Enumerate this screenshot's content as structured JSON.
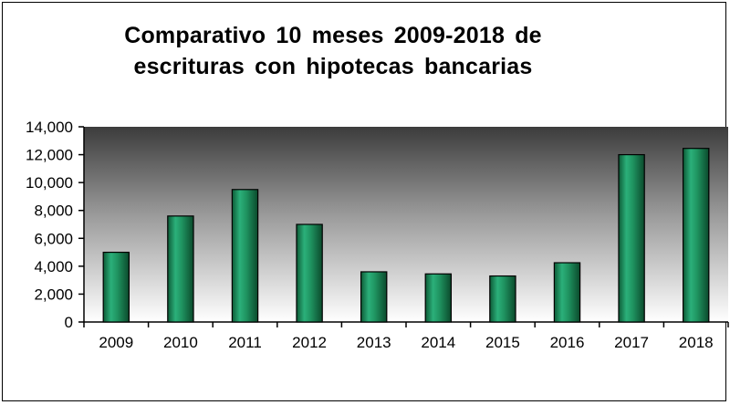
{
  "chart_data": {
    "type": "bar",
    "title_lines": [
      "Comparativo 10 meses 2009-2018 de",
      "escrituras con hipotecas bancarias"
    ],
    "categories": [
      "2009",
      "2010",
      "2011",
      "2012",
      "2013",
      "2014",
      "2015",
      "2016",
      "2017",
      "2018"
    ],
    "values": [
      5000,
      7600,
      9500,
      7000,
      3600,
      3450,
      3300,
      4250,
      12000,
      12450
    ],
    "ylim": [
      0,
      14000
    ],
    "yticks": [
      0,
      2000,
      4000,
      6000,
      8000,
      10000,
      12000,
      14000
    ],
    "ytick_labels": [
      "0",
      "2,000",
      "4,000",
      "6,000",
      "8,000",
      "10,000",
      "12,000",
      "14,000"
    ],
    "grid": false,
    "legend": "none",
    "bar_color": "#1f8f5a",
    "plot_background": "gradient dark gray (top) to white (bottom)"
  }
}
